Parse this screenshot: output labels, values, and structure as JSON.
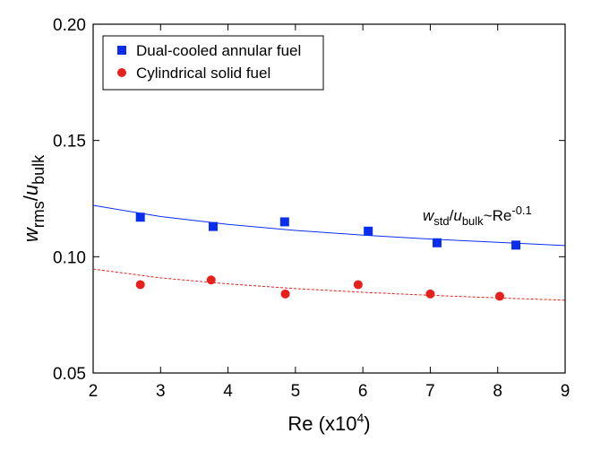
{
  "chart_data": {
    "type": "scatter",
    "xlabel_parts": [
      "Re (x10",
      "4",
      ")"
    ],
    "ylabel_parts": [
      "w",
      "rms",
      "/",
      "u",
      "bulk"
    ],
    "annotation_parts": [
      "w",
      "std",
      "/",
      "u",
      "bulk",
      "~Re",
      "-0.1"
    ],
    "xlim": [
      2,
      9
    ],
    "ylim": [
      0.05,
      0.2
    ],
    "xticks": [
      2,
      3,
      4,
      5,
      6,
      7,
      8,
      9
    ],
    "yticks": [
      0.05,
      {
        "value": 0.1,
        "label": "0.10"
      },
      0.15,
      {
        "value": 0.2,
        "label": "0.20"
      }
    ],
    "legend": "upper left",
    "series": [
      {
        "name": "Dual-cooled annular fuel",
        "color": "#0a2ef0",
        "marker": "square",
        "x": [
          2.7,
          3.78,
          4.84,
          6.08,
          7.1,
          8.27
        ],
        "values": [
          0.117,
          0.113,
          0.115,
          0.111,
          0.106,
          0.105
        ]
      },
      {
        "name": "Cylindrical solid fuel",
        "color": "#e8201c",
        "marker": "circle",
        "x": [
          2.7,
          3.75,
          4.85,
          5.93,
          7.0,
          8.03
        ],
        "values": [
          0.088,
          0.09,
          0.084,
          0.088,
          0.084,
          0.083
        ]
      }
    ],
    "fits": [
      {
        "color": "#0a2ef0",
        "dashed": false,
        "x": [
          2,
          3,
          4,
          5,
          6,
          7,
          8,
          9
        ],
        "values": [
          0.1221,
          0.1173,
          0.1139,
          0.1113,
          0.1093,
          0.1076,
          0.1062,
          0.1048
        ]
      },
      {
        "color": "#e8201c",
        "dashed": true,
        "x": [
          2,
          3,
          4,
          5,
          6,
          7,
          8,
          9
        ],
        "values": [
          0.0947,
          0.0909,
          0.0883,
          0.0863,
          0.0847,
          0.0834,
          0.0823,
          0.0813
        ]
      }
    ]
  }
}
